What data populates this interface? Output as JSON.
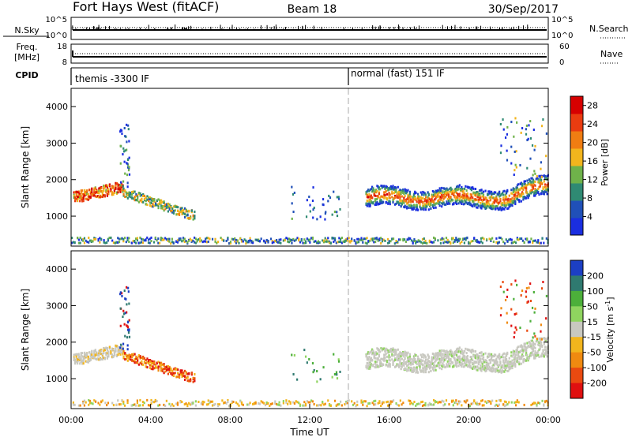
{
  "header": {
    "title": "Fort Hays West (fitACF)",
    "beam": "Beam 18",
    "date": "30/Sep/2017"
  },
  "nsky_panel": {
    "left_label": "N.Sky",
    "right_label": "N.Search",
    "left_ticks": [
      "10^5",
      "10^0"
    ],
    "right_ticks": [
      "10^5",
      "10^0"
    ]
  },
  "freq_panel": {
    "left_label_1": "Freq.",
    "left_label_2": "[MHz]",
    "left_ticks": [
      "18",
      "8"
    ],
    "right_label": "Nave",
    "right_ticks": [
      "60",
      "0"
    ]
  },
  "cpid_panel": {
    "label": "CPID",
    "mode_1": "themis -3300 IF",
    "mode_2": "normal (fast) 151 IF"
  },
  "chart_data": [
    {
      "type": "heatmap",
      "panel": "power",
      "ylabel": "Slant Range [km]",
      "y_ticks": [
        1000,
        2000,
        3000,
        4000
      ],
      "ylim": [
        180,
        4500
      ],
      "colorbar_label": "Power [dB]",
      "colorbar_ticks": [
        4,
        8,
        12,
        16,
        20,
        24,
        28
      ],
      "colorbar_range": [
        0,
        30
      ],
      "colors": [
        "#1a2ee0",
        "#2050b8",
        "#2f8a73",
        "#6fb24a",
        "#f2b51d",
        "#f07d12",
        "#ea3c10",
        "#d60000"
      ]
    },
    {
      "type": "heatmap",
      "panel": "velocity",
      "ylabel": "Slant Range [km]",
      "y_ticks": [
        1000,
        2000,
        3000,
        4000
      ],
      "ylim": [
        180,
        4500
      ],
      "colorbar_label": "Velocity [m s",
      "colorbar_label_sup": "-1",
      "colorbar_label_end": "]",
      "colorbar_ticks": [
        "200",
        "100",
        "50",
        "15",
        "-15",
        "-50",
        "-100",
        "-200"
      ],
      "colors": [
        "#1c3fc4",
        "#2f7a70",
        "#4caf3a",
        "#8fd45f",
        "#c8c8c0",
        "#f2b51d",
        "#f08a10",
        "#ea4a10",
        "#e01010"
      ]
    }
  ],
  "x_axis": {
    "label": "Time UT",
    "ticks": [
      "00:00",
      "04:00",
      "08:00",
      "12:00",
      "16:00",
      "20:00",
      "00:00"
    ]
  }
}
